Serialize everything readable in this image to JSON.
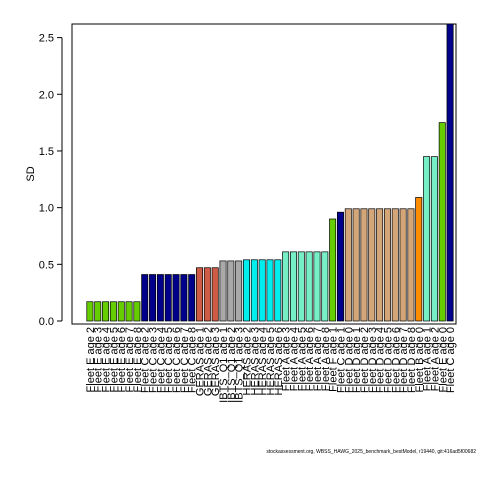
{
  "chart_data": {
    "type": "bar",
    "ylabel": "SD",
    "ylim": [
      0,
      2.62
    ],
    "yticks": [
      "0.0",
      "0.5",
      "1.0",
      "1.5",
      "2.0",
      "2.5"
    ],
    "categories": [
      "Fleet E age 2",
      "Fleet E age 3",
      "Fleet E age 4",
      "Fleet E age 5",
      "Fleet E age 6",
      "Fleet E age 7",
      "Fleet E age 8",
      "Fleet C age 2",
      "Fleet C age 3",
      "Fleet C age 4",
      "Fleet C age 5",
      "Fleet C age 6",
      "Fleet C age 7",
      "Fleet C age 8",
      "GERAS age 1",
      "GERAS age 2",
      "GERAS age 3",
      "IBTS_Q1 age 1",
      "IBTS_Q1 age 2",
      "IBTS_Q1 age 3",
      "HERAS age 2",
      "HERAS age 3",
      "HERAS age 4",
      "HERAS age 5",
      "HERAS age 6",
      "Fleet A age 3",
      "Fleet A age 4",
      "Fleet A age 5",
      "Fleet A age 6",
      "Fleet A age 7",
      "Fleet A age 8",
      "Fleet F age 1",
      "Fleet C age 1",
      "Fleet D age 0",
      "Fleet D age 1",
      "Fleet D age 2",
      "Fleet D age 3",
      "Fleet D age 4",
      "Fleet D age 5",
      "Fleet D age 6",
      "Fleet D age 7",
      "Fleet D age 8",
      "Fleet B age 0",
      "Fleet A age 1",
      "Fleet A age 2",
      "Fleet E age 0",
      "Fleet C age 0"
    ],
    "values": [
      0.17,
      0.17,
      0.17,
      0.17,
      0.17,
      0.17,
      0.17,
      0.41,
      0.41,
      0.41,
      0.41,
      0.41,
      0.41,
      0.41,
      0.47,
      0.47,
      0.47,
      0.53,
      0.53,
      0.53,
      0.54,
      0.54,
      0.54,
      0.54,
      0.54,
      0.61,
      0.61,
      0.61,
      0.61,
      0.61,
      0.61,
      0.9,
      0.96,
      0.99,
      0.99,
      0.99,
      0.99,
      0.99,
      0.99,
      0.99,
      0.99,
      0.99,
      1.09,
      1.45,
      1.45,
      1.75,
      2.62
    ],
    "colors": [
      "#66cd00",
      "#66cd00",
      "#66cd00",
      "#66cd00",
      "#66cd00",
      "#66cd00",
      "#66cd00",
      "#00008b",
      "#00008b",
      "#00008b",
      "#00008b",
      "#00008b",
      "#00008b",
      "#00008b",
      "#cd5b45",
      "#cd5b45",
      "#cd5b45",
      "#a9a9a9",
      "#a9a9a9",
      "#a9a9a9",
      "#00eeee",
      "#00eeee",
      "#00eeee",
      "#00eeee",
      "#00eeee",
      "#76eec6",
      "#76eec6",
      "#76eec6",
      "#76eec6",
      "#76eec6",
      "#76eec6",
      "#66cd00",
      "#00008b",
      "#d2a679",
      "#d2a679",
      "#d2a679",
      "#d2a679",
      "#d2a679",
      "#d2a679",
      "#d2a679",
      "#d2a679",
      "#d2a679",
      "#ff8c00",
      "#76eec6",
      "#76eec6",
      "#66cd00",
      "#00008b"
    ],
    "grid": false,
    "legend": "none"
  },
  "footer": {
    "text": "stockassessment.org, WBSS_HAWG_2025_benchmark_bestModel, r19440, git:416ad5f00682"
  }
}
